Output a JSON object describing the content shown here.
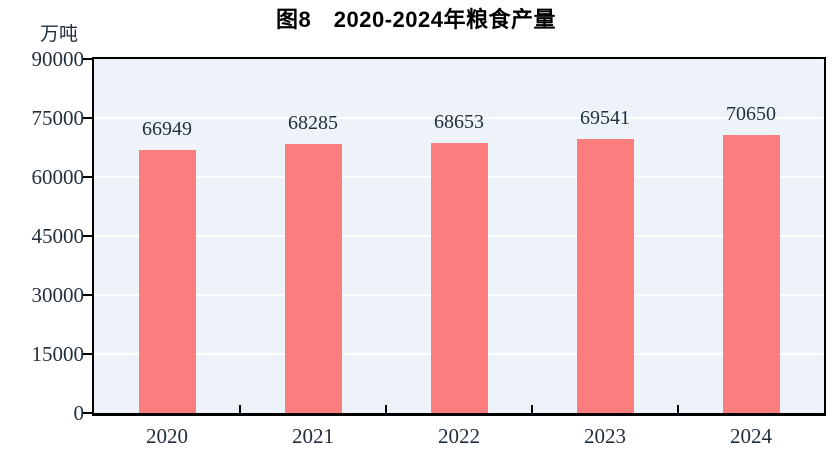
{
  "chart_data": {
    "type": "bar",
    "title": "图8　2020-2024年粮食产量",
    "ylabel": "万吨",
    "xlabel": "",
    "categories": [
      "2020",
      "2021",
      "2022",
      "2023",
      "2024"
    ],
    "values": [
      66949,
      68285,
      68653,
      69541,
      70650
    ],
    "data_labels": [
      "66949",
      "68285",
      "68653",
      "69541",
      "70650"
    ],
    "ylim": [
      0,
      90000
    ],
    "yticks": [
      0,
      15000,
      30000,
      45000,
      60000,
      75000,
      90000
    ],
    "ytick_labels": [
      "0",
      "15000",
      "30000",
      "45000",
      "60000",
      "75000",
      "90000"
    ],
    "grid": true,
    "legend_position": "none",
    "colors": {
      "bar": "#FB7D7D",
      "plot_background": "#EDF3F8",
      "gridline": "#FFFFFF",
      "axis": "#000000",
      "tick_text": "#22303E",
      "title_text": "#000000"
    }
  }
}
